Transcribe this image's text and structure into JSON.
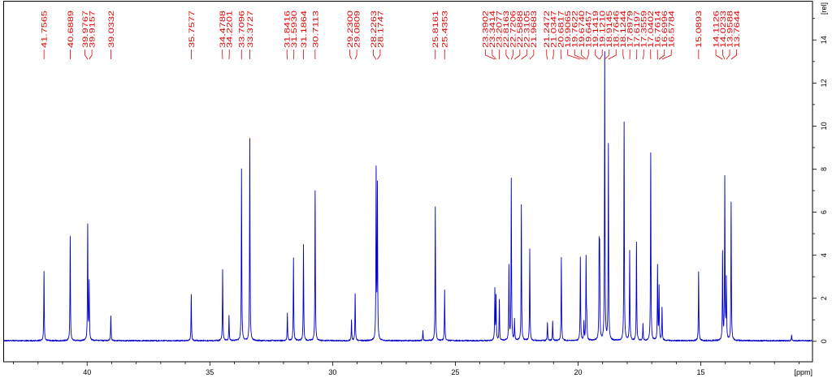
{
  "chart_data": {
    "type": "line",
    "xlabel": "[ppm]",
    "ylabel": "[rel]",
    "xlim": [
      43.4,
      10.45
    ],
    "ylim": [
      -0.95,
      15.8
    ],
    "x_ticks": [
      40,
      35,
      30,
      25,
      20,
      15
    ],
    "y_ticks": [
      0,
      2,
      4,
      6,
      8,
      10,
      12,
      14
    ],
    "y_axis_position": "right",
    "grid": false,
    "peaks": [
      {
        "ppm": 41.7565,
        "height": 3.2,
        "label": "41.7565"
      },
      {
        "ppm": 40.6889,
        "height": 4.85,
        "label": "40.6889"
      },
      {
        "ppm": 39.9767,
        "height": 5.35,
        "label": "39.9767"
      },
      {
        "ppm": 39.9157,
        "height": 2.65,
        "label": "39.9157"
      },
      {
        "ppm": 39.0332,
        "height": 1.15,
        "label": "39.0332"
      },
      {
        "ppm": 35.7577,
        "height": 2.15,
        "label": "35.7577"
      },
      {
        "ppm": 34.4788,
        "height": 3.3,
        "label": "34.4788"
      },
      {
        "ppm": 34.2201,
        "height": 1.15,
        "label": "34.2201"
      },
      {
        "ppm": 33.7096,
        "height": 8.0,
        "label": "33.7096"
      },
      {
        "ppm": 33.3727,
        "height": 9.4,
        "label": "33.3727"
      },
      {
        "ppm": 31.8416,
        "height": 1.25,
        "label": "31.8416"
      },
      {
        "ppm": 31.593,
        "height": 3.85,
        "label": "31.5930"
      },
      {
        "ppm": 31.1864,
        "height": 4.45,
        "label": "31.1864"
      },
      {
        "ppm": 30.7113,
        "height": 6.95,
        "label": "30.7113"
      },
      {
        "ppm": 29.23,
        "height": 0.95,
        "label": "29.2300"
      },
      {
        "ppm": 29.0809,
        "height": 2.2,
        "label": "29.0809"
      },
      {
        "ppm": 28.2263,
        "height": 7.8,
        "label": "28.2263"
      },
      {
        "ppm": 28.1747,
        "height": 7.05,
        "label": "28.1747"
      },
      {
        "ppm": 25.8161,
        "height": 6.2,
        "label": "25.8161"
      },
      {
        "ppm": 25.4353,
        "height": 2.35,
        "label": "25.4353"
      },
      {
        "ppm": 23.3902,
        "height": 2.35,
        "label": "23.3902"
      },
      {
        "ppm": 23.3414,
        "height": 2.0,
        "label": "23.3414"
      },
      {
        "ppm": 23.2077,
        "height": 1.9,
        "label": "23.2077"
      },
      {
        "ppm": 22.8163,
        "height": 3.45,
        "label": "22.8163"
      },
      {
        "ppm": 22.7206,
        "height": 7.5,
        "label": "22.7206"
      },
      {
        "ppm": 22.5888,
        "height": 0.95,
        "label": "22.5888"
      },
      {
        "ppm": 22.3105,
        "height": 6.3,
        "label": "22.3105"
      },
      {
        "ppm": 21.9683,
        "height": 4.25,
        "label": "21.9683"
      },
      {
        "ppm": 21.2472,
        "height": 0.85,
        "label": "21.2472"
      },
      {
        "ppm": 21.0347,
        "height": 0.9,
        "label": "21.0347"
      },
      {
        "ppm": 20.6817,
        "height": 3.85,
        "label": "20.6817"
      },
      {
        "ppm": 19.9065,
        "height": 3.85,
        "label": "19.9065"
      },
      {
        "ppm": 19.7622,
        "height": 0.85,
        "label": "19.7622"
      },
      {
        "ppm": 19.674,
        "height": 3.85,
        "label": "19.6740"
      },
      {
        "ppm": 19.6457,
        "height": 0.9,
        "label": "19.6457"
      },
      {
        "ppm": 19.1419,
        "height": 3.95,
        "label": "19.1419"
      },
      {
        "ppm": 19.121,
        "height": 3.8,
        "label": "19.1210"
      },
      {
        "ppm": 18.9145,
        "height": 13.35,
        "label": "18.9145"
      },
      {
        "ppm": 18.7646,
        "height": 9.1,
        "label": "18.7646"
      },
      {
        "ppm": 18.1244,
        "height": 10.15,
        "label": "18.1244"
      },
      {
        "ppm": 17.8979,
        "height": 4.15,
        "label": "17.8979"
      },
      {
        "ppm": 17.6197,
        "height": 4.55,
        "label": "17.6197"
      },
      {
        "ppm": 17.3559,
        "height": 0.8,
        "label": "17.3559"
      },
      {
        "ppm": 17.0402,
        "height": 8.7,
        "label": "17.0402"
      },
      {
        "ppm": 16.7614,
        "height": 3.45,
        "label": "16.7614"
      },
      {
        "ppm": 16.6996,
        "height": 2.45,
        "label": "16.6996"
      },
      {
        "ppm": 16.5784,
        "height": 1.55,
        "label": "16.5784"
      },
      {
        "ppm": 15.0893,
        "height": 3.2,
        "label": "15.0893"
      },
      {
        "ppm": 14.1126,
        "height": 4.05,
        "label": "14.1126"
      },
      {
        "ppm": 14.0233,
        "height": 7.5,
        "label": "14.0233"
      },
      {
        "ppm": 13.9588,
        "height": 2.75,
        "label": "13.9588"
      },
      {
        "ppm": 13.7644,
        "height": 6.4,
        "label": "13.7644"
      }
    ],
    "unlabeled_peaks": [
      {
        "ppm": 26.32,
        "height": 0.45
      },
      {
        "ppm": 11.3,
        "height": 0.28
      }
    ]
  },
  "colors": {
    "spectrum": "#0000cd",
    "peak_labels": "#e00000",
    "axes": "#000000"
  }
}
